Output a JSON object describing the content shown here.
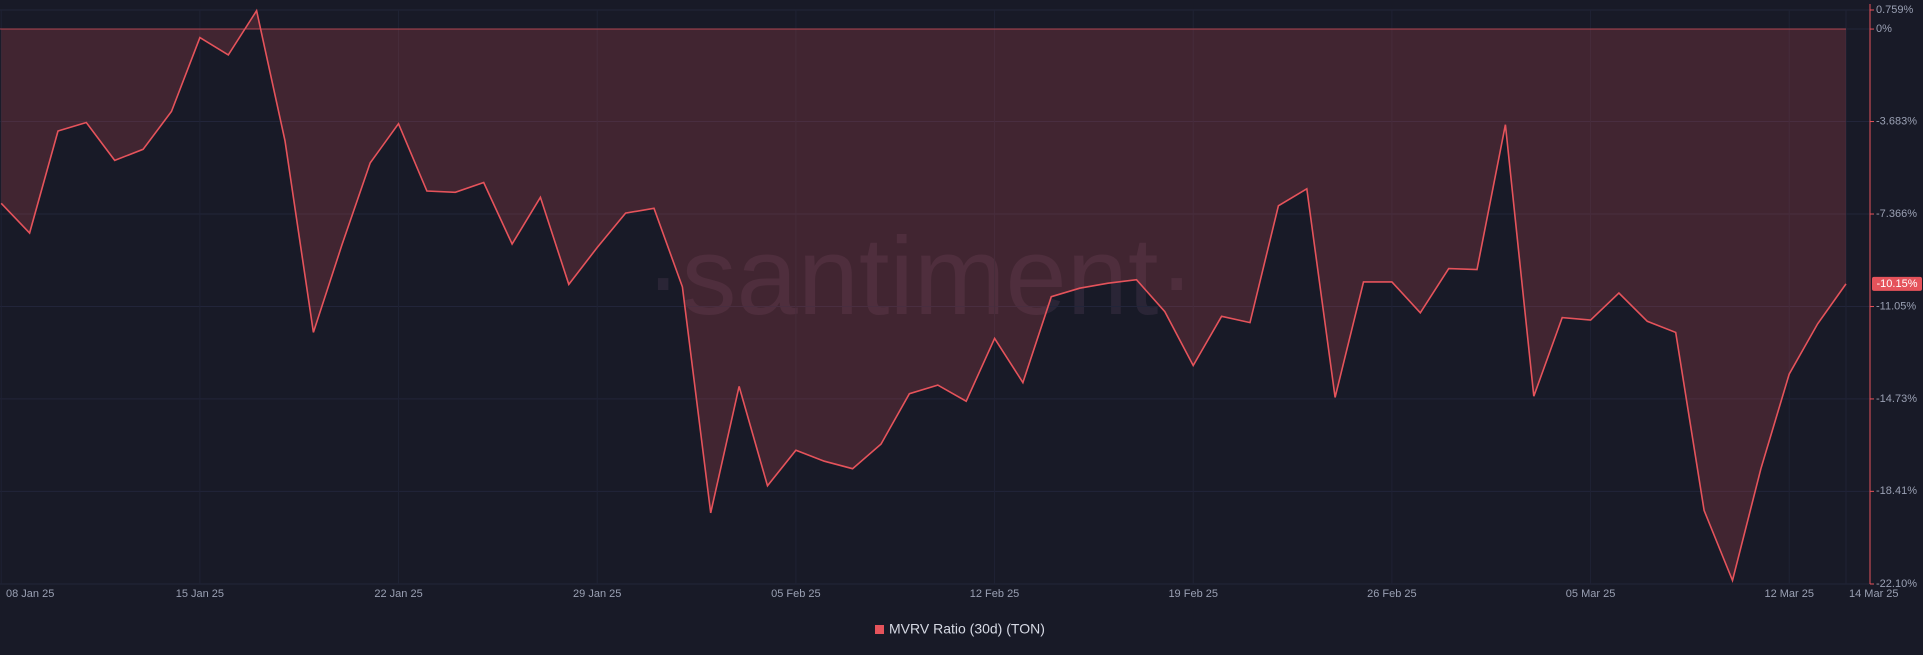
{
  "chart_data": {
    "type": "line",
    "watermark": "·santiment·",
    "categories": [
      "08 Jan 25",
      null,
      null,
      null,
      null,
      null,
      null,
      "15 Jan 25",
      null,
      null,
      null,
      null,
      null,
      null,
      "22 Jan 25",
      null,
      null,
      null,
      null,
      null,
      null,
      "29 Jan 25",
      null,
      null,
      null,
      null,
      null,
      null,
      "05 Feb 25",
      null,
      null,
      null,
      null,
      null,
      null,
      "12 Feb 25",
      null,
      null,
      null,
      null,
      null,
      null,
      "19 Feb 25",
      null,
      null,
      null,
      null,
      null,
      null,
      "26 Feb 25",
      null,
      null,
      null,
      null,
      null,
      null,
      "05 Mar 25",
      null,
      null,
      null,
      null,
      null,
      null,
      "12 Mar 25",
      null,
      "14 Mar 25"
    ],
    "series": [
      {
        "name": "MVRV Ratio (30d) (TON)",
        "color": "#e5535b",
        "values": [
          -6.94,
          -8.12,
          -4.06,
          -3.72,
          -5.23,
          -4.79,
          -3.28,
          -0.34,
          -1.03,
          0.73,
          -4.45,
          -12.08,
          -8.61,
          -5.33,
          -3.77,
          -6.45,
          -6.5,
          -6.11,
          -8.56,
          -6.7,
          -10.17,
          -8.7,
          -7.33,
          -7.14,
          -10.27,
          -19.27,
          -14.23,
          -18.19,
          -16.77,
          -17.21,
          -17.51,
          -16.53,
          -14.52,
          -14.18,
          -14.82,
          -12.32,
          -14.08,
          -10.66,
          -10.32,
          -10.12,
          -9.98,
          -11.25,
          -13.4,
          -11.44,
          -11.69,
          -7.04,
          -6.36,
          -14.67,
          -10.07,
          -10.07,
          -11.3,
          -9.54,
          -9.58,
          -3.81,
          -14.62,
          -11.49,
          -11.59,
          -10.51,
          -11.64,
          -12.08,
          -19.17,
          -21.96,
          -17.51,
          -13.74,
          -11.74,
          -10.15
        ],
        "value_labels": [
          null,
          null,
          null,
          null,
          null,
          null,
          null,
          null,
          null,
          null,
          null,
          null,
          null,
          null,
          null,
          null,
          null,
          null,
          null,
          null,
          null,
          null,
          null,
          null,
          null,
          null,
          null,
          null,
          null,
          null,
          null,
          null,
          null,
          null,
          null,
          null,
          null,
          null,
          null,
          null,
          null,
          null,
          null,
          null,
          null,
          null,
          null,
          null,
          null,
          null,
          null,
          null,
          null,
          null,
          null,
          null,
          null,
          null,
          null,
          null,
          null,
          null,
          null,
          null,
          null,
          "-10.15%"
        ]
      }
    ],
    "ylim": [
      -22.1,
      0.759
    ],
    "yticks": [
      {
        "value": 0.759,
        "label": "0.759%"
      },
      {
        "value": 0,
        "label": "0%"
      },
      {
        "value": -3.683,
        "label": "-3.683%"
      },
      {
        "value": -7.366,
        "label": "-7.366%"
      },
      {
        "value": -11.05,
        "label": "-11.05%"
      },
      {
        "value": -14.73,
        "label": "-14.73%"
      },
      {
        "value": -18.41,
        "label": "-18.41%"
      },
      {
        "value": -22.1,
        "label": "-22.10%"
      }
    ],
    "grid": true,
    "legend": "bottom"
  }
}
